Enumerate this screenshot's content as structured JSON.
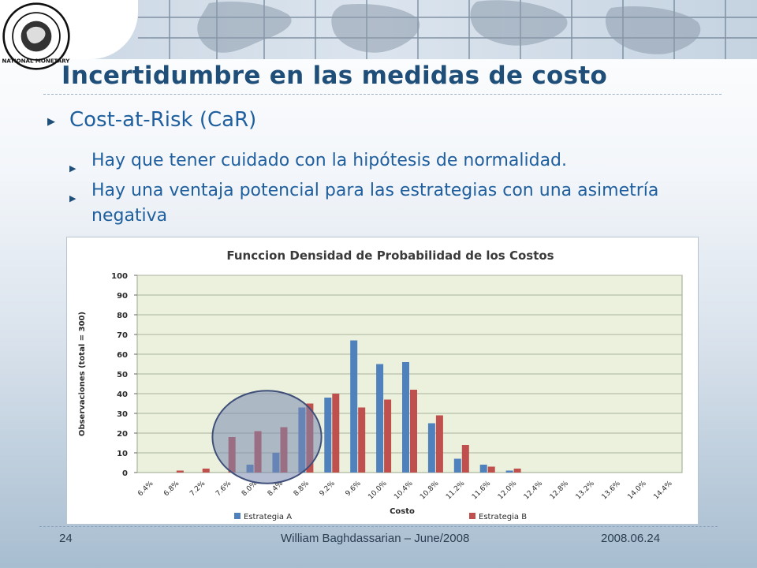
{
  "slide": {
    "title": "Incertidumbre en las medidas de costo",
    "bullets": [
      "Cost-at-Risk (CaR)",
      "Hay que tener cuidado con la hipótesis de normalidad.",
      "Hay una ventaja potencial para las estrategias con una asimetría negativa"
    ],
    "bullet_icon": "triangle-right-icon",
    "logo_icon": "imf-seal-icon",
    "logo_text": "INTERNATIONAL MONETARY FUND"
  },
  "footer": {
    "page": "24",
    "author": "William Baghdassarian – June/2008",
    "date": "2008.06.24"
  },
  "colors": {
    "title": "#1f4e79",
    "text": "#1f5f9e",
    "plot_bg": "#ebf1dd",
    "series_a": "#4f81bd",
    "series_b": "#c0504d",
    "ellipse_fill": "#7a89b0",
    "ellipse_stroke": "#3f4f7a"
  },
  "chart_data": {
    "type": "bar",
    "title": "Funccion Densidad de Probabilidad de los Costos",
    "xlabel": "Costo",
    "ylabel": "Observaciones (total = 300)",
    "ylim": [
      0,
      100
    ],
    "yticks": [
      "0",
      "10",
      "20",
      "30",
      "40",
      "50",
      "60",
      "70",
      "80",
      "90",
      "100"
    ],
    "grid": true,
    "legend": "bottom",
    "categories": [
      "6.4%",
      "6.8%",
      "7.2%",
      "7.6%",
      "8.0%",
      "8.4%",
      "8.8%",
      "9.2%",
      "9.6%",
      "10.0%",
      "10.4%",
      "10.8%",
      "11.2%",
      "11.6%",
      "12.0%",
      "12.4%",
      "12.8%",
      "13.2%",
      "13.6%",
      "14.0%",
      "14.4%"
    ],
    "series": [
      {
        "name": "Estrategia A",
        "values": [
          0,
          0,
          0,
          0,
          4,
          10,
          33,
          38,
          67,
          55,
          56,
          25,
          7,
          4,
          1,
          0,
          0,
          0,
          0,
          0,
          0
        ]
      },
      {
        "name": "Estrategia B",
        "values": [
          0,
          1,
          2,
          18,
          21,
          23,
          35,
          40,
          33,
          37,
          42,
          29,
          14,
          3,
          2,
          0,
          0,
          0,
          0,
          0,
          0
        ]
      }
    ],
    "annotation": {
      "shape": "ellipse",
      "center_category_index": 4.5,
      "center_value": 18,
      "span_categories": 4.2,
      "span_value": 47
    }
  }
}
